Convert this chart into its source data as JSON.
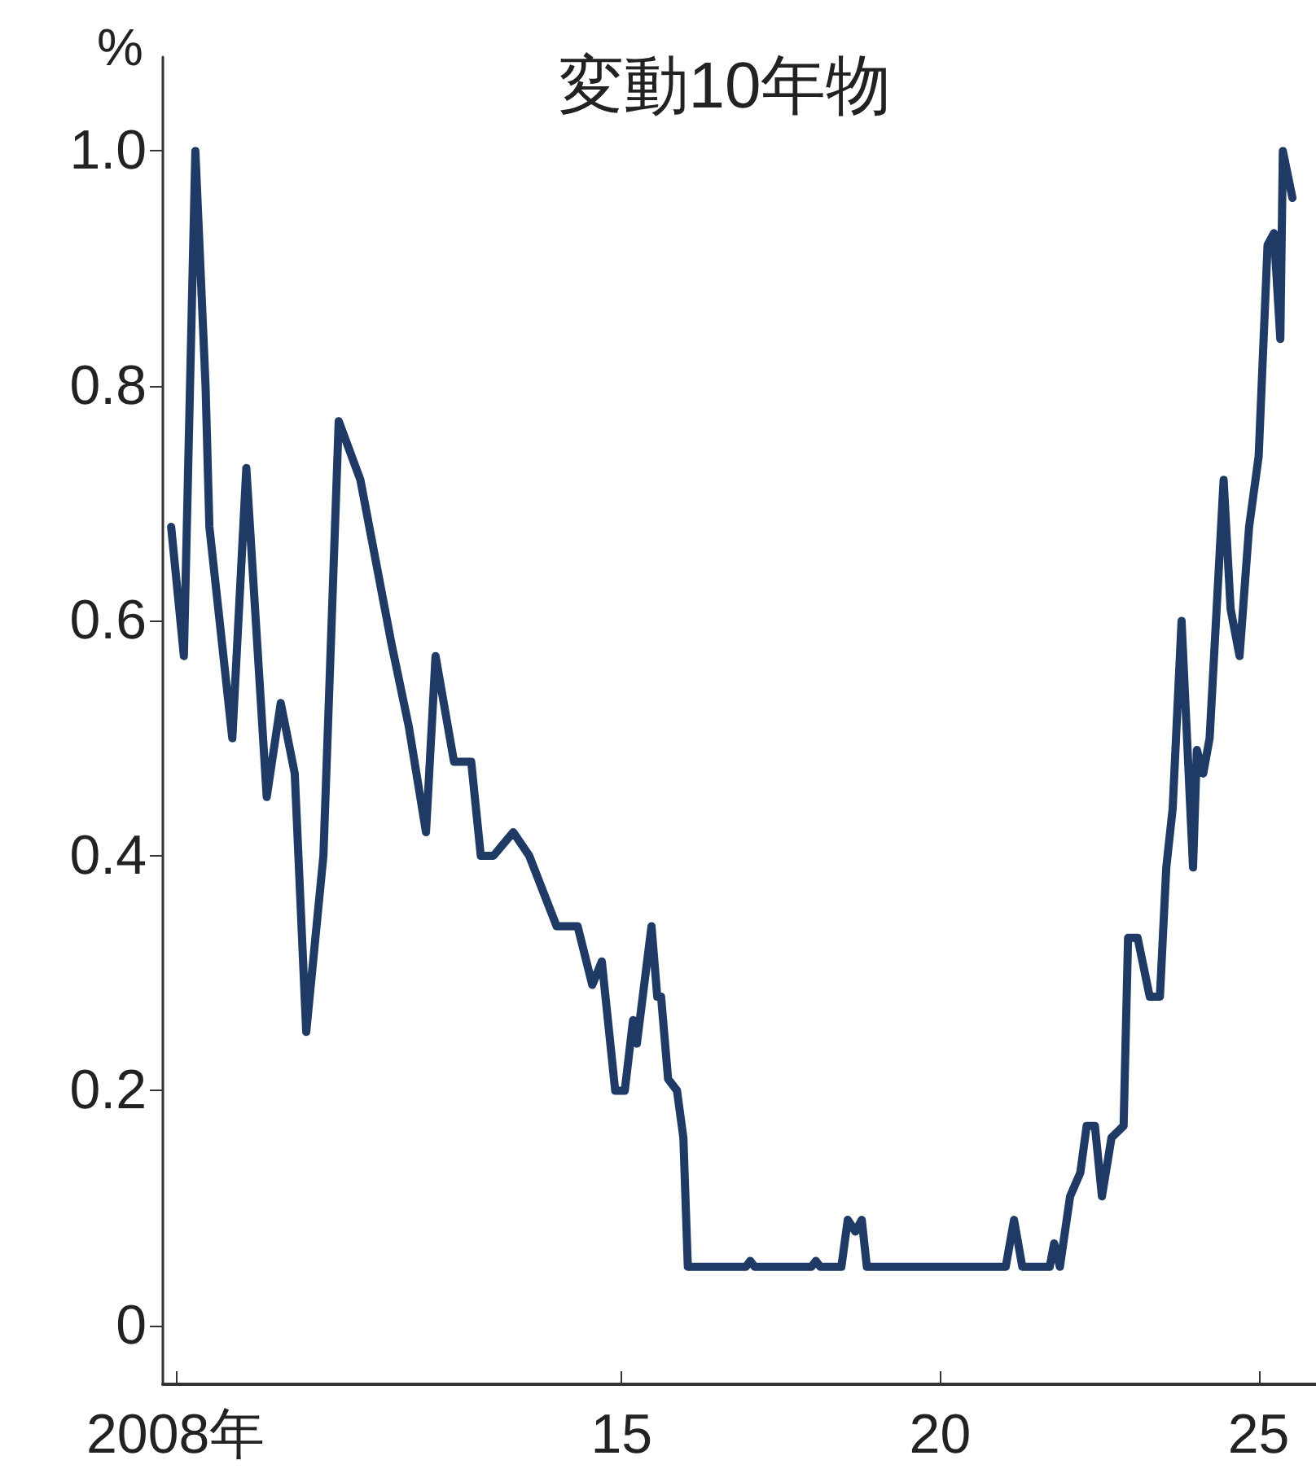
{
  "chart_data": {
    "type": "line",
    "title": "変動10年物",
    "ylabel": "%",
    "x": [
      2007.93,
      2008.13,
      2008.31,
      2008.47,
      2008.53,
      2008.89,
      2009.11,
      2009.43,
      2009.65,
      2009.87,
      2010.05,
      2010.32,
      2010.56,
      2010.9,
      2011.39,
      2011.66,
      2011.93,
      2012.08,
      2012.37,
      2012.64,
      2012.79,
      2012.99,
      2013.3,
      2013.55,
      2013.98,
      2014.31,
      2014.54,
      2014.69,
      2014.9,
      2015.05,
      2015.18,
      2015.24,
      2015.47,
      2015.56,
      2015.62,
      2015.73,
      2015.87,
      2015.97,
      2016.04,
      2016.95,
      2017.02,
      2017.09,
      2017.98,
      2018.05,
      2018.12,
      2018.45,
      2018.55,
      2018.67,
      2018.77,
      2018.85,
      2021.03,
      2021.16,
      2021.29,
      2021.72,
      2021.79,
      2021.88,
      2022.04,
      2022.2,
      2022.3,
      2022.43,
      2022.54,
      2022.69,
      2022.88,
      2022.95,
      2023.1,
      2023.29,
      2023.45,
      2023.55,
      2023.65,
      2023.79,
      2023.97,
      2024.03,
      2024.13,
      2024.23,
      2024.45,
      2024.56,
      2024.7,
      2024.85,
      2025,
      2025.14,
      2025.24,
      2025.34,
      2025.38,
      2025.53
    ],
    "series": [
      {
        "color": "#1f3a64",
        "values": [
          0.68,
          0.57,
          1.0,
          0.8,
          0.68,
          0.5,
          0.73,
          0.45,
          0.53,
          0.47,
          0.25,
          0.4,
          0.77,
          0.72,
          0.58,
          0.51,
          0.42,
          0.57,
          0.48,
          0.48,
          0.4,
          0.4,
          0.42,
          0.4,
          0.34,
          0.34,
          0.29,
          0.31,
          0.2,
          0.2,
          0.26,
          0.24,
          0.34,
          0.28,
          0.28,
          0.21,
          0.2,
          0.16,
          0.05,
          0.05,
          0.055,
          0.05,
          0.05,
          0.055,
          0.05,
          0.05,
          0.09,
          0.08,
          0.09,
          0.05,
          0.05,
          0.09,
          0.05,
          0.05,
          0.07,
          0.05,
          0.11,
          0.13,
          0.17,
          0.17,
          0.11,
          0.16,
          0.17,
          0.33,
          0.33,
          0.28,
          0.28,
          0.39,
          0.44,
          0.6,
          0.39,
          0.49,
          0.47,
          0.5,
          0.72,
          0.61,
          0.57,
          0.68,
          0.74,
          0.92,
          0.93,
          0.84,
          1.0,
          0.96
        ]
      }
    ],
    "xlim": [
      2007.8,
      2025.9
    ],
    "xticks": [
      {
        "value": 2008,
        "label": "2008年"
      },
      {
        "value": 2015,
        "label": "15"
      },
      {
        "value": 2020,
        "label": "20"
      },
      {
        "value": 2025,
        "label": "25"
      }
    ],
    "ylim": [
      -0.05,
      1.08
    ],
    "yticks": [
      0,
      0.2,
      0.4,
      0.6,
      0.8,
      {
        "value": 1,
        "label": "1.0"
      }
    ],
    "marker": "none",
    "line_style": "solid"
  }
}
